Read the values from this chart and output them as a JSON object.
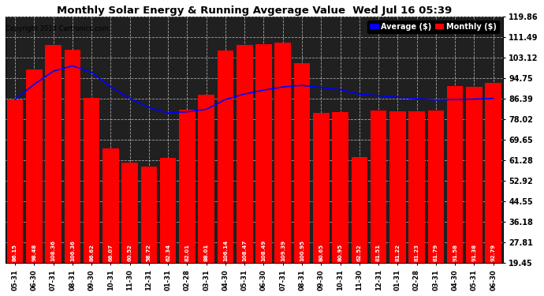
{
  "title": "Monthly Solar Energy & Running Avgerage Value  Wed Jul 16 05:39",
  "copyright": "Copyright 2014 Cartronics.com",
  "categories": [
    "05-31",
    "06-30",
    "07-31",
    "08-31",
    "09-30",
    "10-31",
    "11-30",
    "12-31",
    "01-31",
    "02-28",
    "03-31",
    "04-30",
    "05-31",
    "06-30",
    "07-31",
    "08-31",
    "09-30",
    "10-31",
    "11-30",
    "12-31",
    "01-31",
    "02-28",
    "03-31",
    "04-30",
    "05-31",
    "06-30"
  ],
  "bar_values": [
    86.15,
    98.48,
    108.36,
    106.36,
    86.62,
    66.07,
    60.52,
    58.72,
    62.34,
    82.01,
    88.01,
    106.14,
    108.47,
    108.49,
    109.39,
    100.95,
    80.65,
    80.95,
    62.52,
    81.51,
    81.22,
    81.23,
    81.79,
    91.58,
    91.38,
    92.79
  ],
  "avg_values": [
    86.15,
    92.31,
    97.66,
    99.84,
    97.19,
    91.27,
    86.63,
    82.84,
    80.64,
    81.13,
    82.14,
    86.14,
    88.38,
    89.94,
    91.24,
    91.88,
    90.97,
    90.13,
    88.24,
    87.69,
    87.01,
    86.42,
    85.96,
    86.1,
    86.28,
    86.58
  ],
  "bar_color": "#ff0000",
  "avg_color": "#0000ff",
  "background_color": "#ffffff",
  "plot_bg_color": "#202020",
  "grid_color": "#ffffff",
  "ytick_labels": [
    "19.45",
    "27.81",
    "36.18",
    "44.55",
    "52.92",
    "61.28",
    "69.65",
    "78.02",
    "86.39",
    "94.75",
    "103.12",
    "111.49",
    "119.86"
  ],
  "ytick_values": [
    19.45,
    27.81,
    36.18,
    44.55,
    52.92,
    61.28,
    69.65,
    78.02,
    86.39,
    94.75,
    103.12,
    111.49,
    119.86
  ],
  "ymin": 19.45,
  "ymax": 119.86,
  "bar_label_color": "#ffffff",
  "bar_label_fontsize": 5.0,
  "legend_avg_color": "#0000ff",
  "legend_monthly_color": "#ff0000",
  "legend_avg_label": "Average ($)",
  "legend_monthly_label": "Monthly ($)"
}
